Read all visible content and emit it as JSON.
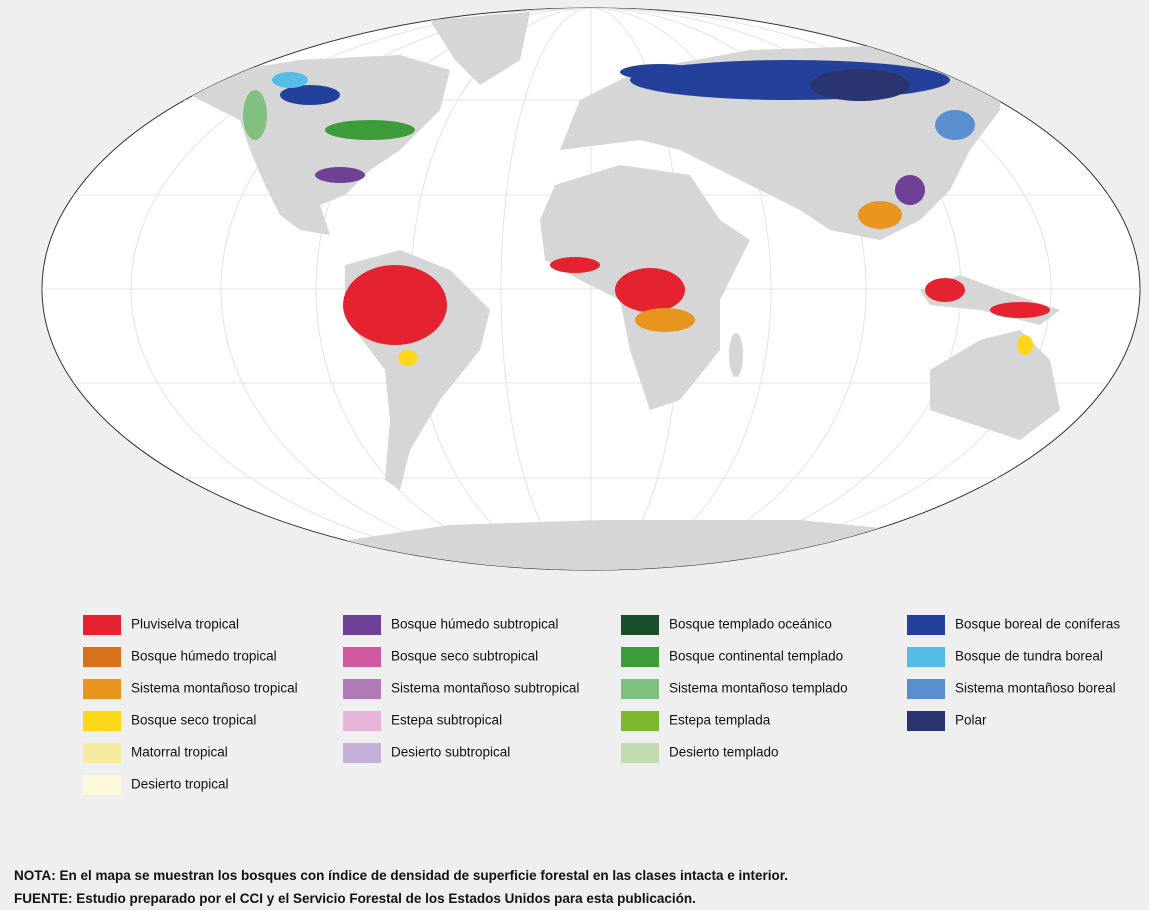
{
  "legend": {
    "columns": [
      [
        {
          "label": "Pluviselva tropical",
          "color": "#e52330"
        },
        {
          "label": "Bosque húmedo tropical",
          "color": "#d8711c"
        },
        {
          "label": "Sistema montañoso tropical",
          "color": "#e8951f"
        },
        {
          "label": "Bosque seco tropical",
          "color": "#fdd71a"
        },
        {
          "label": "Matorral tropical",
          "color": "#f5eca0"
        },
        {
          "label": "Desierto tropical",
          "color": "#fbf8dc"
        }
      ],
      [
        {
          "label": "Bosque húmedo subtropical",
          "color": "#6e4096"
        },
        {
          "label": "Bosque seco subtropical",
          "color": "#d05aa0"
        },
        {
          "label": "Sistema montañoso subtropical",
          "color": "#b07ab8"
        },
        {
          "label": "Estepa subtropical",
          "color": "#e5b4d6"
        },
        {
          "label": "Desierto subtropical",
          "color": "#c4b0d8"
        }
      ],
      [
        {
          "label": "Bosque templado oceánico",
          "color": "#1a4d2a"
        },
        {
          "label": "Bosque continental templado",
          "color": "#3d9c3a"
        },
        {
          "label": "Sistema montañoso templado",
          "color": "#80c080"
        },
        {
          "label": "Estepa templada",
          "color": "#7ab82e"
        },
        {
          "label": "Desierto templado",
          "color": "#c2dcb0"
        }
      ],
      [
        {
          "label": "Bosque boreal de coníferas",
          "color": "#23419a"
        },
        {
          "label": "Bosque de tundra boreal",
          "color": "#55bde5"
        },
        {
          "label": "Sistema montañoso boreal",
          "color": "#5a8fcf"
        },
        {
          "label": "Polar",
          "color": "#2a3570"
        }
      ]
    ]
  },
  "notes": {
    "nota": "NOTA: En el mapa se muestran los bosques con índice de densidad de superficie forestal en las clases intacta e interior.",
    "fuente": "FUENTE: Estudio preparado por el CCI y el Servicio Forestal de los Estados Unidos para esta publicación."
  }
}
